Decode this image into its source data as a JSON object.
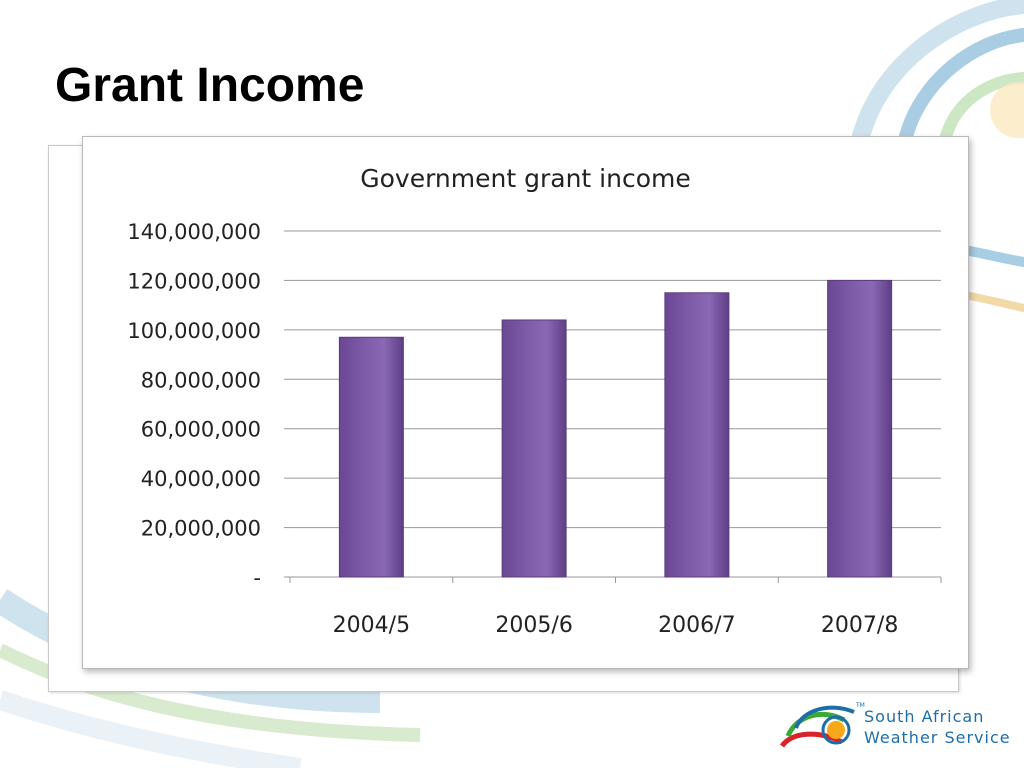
{
  "slide": {
    "title": "Grant Income"
  },
  "logo": {
    "line1": "South African",
    "line2": "Weather Service",
    "trademark": "TM"
  },
  "colors": {
    "bar": "#7d5aa6",
    "bar_edge": "#5b3c80",
    "gridline": "#999999",
    "text": "#222222"
  },
  "chart_data": {
    "type": "bar",
    "title": "Government grant income",
    "categories": [
      "2004/5",
      "2005/6",
      "2006/7",
      "2007/8"
    ],
    "values": [
      97000000,
      104000000,
      115000000,
      120000000
    ],
    "ylim": [
      0,
      140000000
    ],
    "yticks": [
      0,
      20000000,
      40000000,
      60000000,
      80000000,
      100000000,
      120000000,
      140000000
    ],
    "ytick_labels": [
      "-",
      "20,000,000",
      "40,000,000",
      "60,000,000",
      "80,000,000",
      "100,000,000",
      "120,000,000",
      "140,000,000"
    ],
    "xlabel": "",
    "ylabel": "",
    "grid": true,
    "legend": "none"
  }
}
